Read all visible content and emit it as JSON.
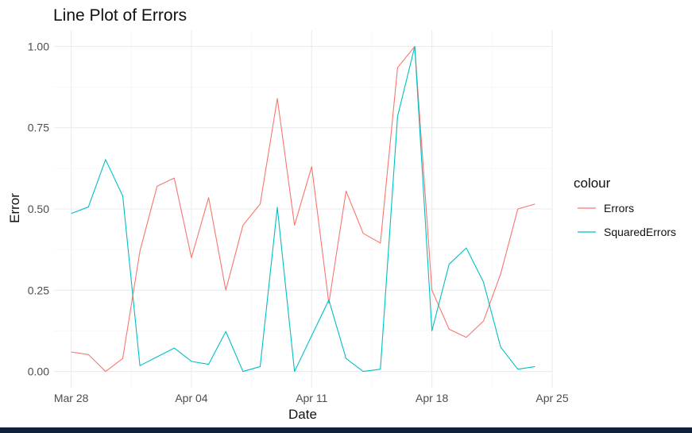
{
  "colors": {
    "errors": "#F8766D",
    "squared_errors": "#00BFC4",
    "bottom_bar": "#0f2138"
  },
  "chart_data": {
    "type": "line",
    "title": "Line Plot of Errors",
    "xlabel": "Date",
    "ylabel": "Error",
    "x_type": "date",
    "xlim": [
      "2024-03-27",
      "2024-04-25"
    ],
    "ylim": [
      -0.05,
      1.05
    ],
    "x_ticks": [
      {
        "value": "2024-03-28",
        "label": "Mar 28"
      },
      {
        "value": "2024-04-04",
        "label": "Apr 04"
      },
      {
        "value": "2024-04-11",
        "label": "Apr 11"
      },
      {
        "value": "2024-04-18",
        "label": "Apr 18"
      },
      {
        "value": "2024-04-25",
        "label": "Apr 25"
      }
    ],
    "y_ticks": [
      {
        "value": 0.0,
        "label": "0.00"
      },
      {
        "value": 0.25,
        "label": "0.25"
      },
      {
        "value": 0.5,
        "label": "0.50"
      },
      {
        "value": 0.75,
        "label": "0.75"
      },
      {
        "value": 1.0,
        "label": "1.00"
      }
    ],
    "grid": true,
    "legend": {
      "title": "colour",
      "position": "right"
    },
    "x": [
      "2024-03-28",
      "2024-03-29",
      "2024-03-30",
      "2024-03-31",
      "2024-04-01",
      "2024-04-02",
      "2024-04-03",
      "2024-04-04",
      "2024-04-05",
      "2024-04-06",
      "2024-04-07",
      "2024-04-08",
      "2024-04-09",
      "2024-04-10",
      "2024-04-11",
      "2024-04-12",
      "2024-04-13",
      "2024-04-14",
      "2024-04-15",
      "2024-04-16",
      "2024-04-17",
      "2024-04-18",
      "2024-04-19",
      "2024-04-20",
      "2024-04-21",
      "2024-04-22",
      "2024-04-23",
      "2024-04-24"
    ],
    "series": [
      {
        "name": "Errors",
        "color": "#F8766D",
        "values": [
          0.06,
          0.052,
          0.0,
          0.04,
          0.37,
          0.57,
          0.595,
          0.35,
          0.535,
          0.25,
          0.45,
          0.515,
          0.84,
          0.45,
          0.63,
          0.21,
          0.555,
          0.425,
          0.395,
          0.935,
          1.0,
          0.25,
          0.13,
          0.105,
          0.155,
          0.3,
          0.5,
          0.515
        ]
      },
      {
        "name": "SquaredErrors",
        "color": "#00BFC4",
        "values": [
          0.486,
          0.506,
          0.652,
          0.54,
          0.018,
          0.045,
          0.072,
          0.031,
          0.022,
          0.123,
          0.0,
          0.015,
          0.505,
          0.0,
          0.11,
          0.22,
          0.04,
          0.0,
          0.007,
          0.785,
          1.0,
          0.125,
          0.33,
          0.38,
          0.275,
          0.075,
          0.007,
          0.015
        ]
      }
    ]
  }
}
